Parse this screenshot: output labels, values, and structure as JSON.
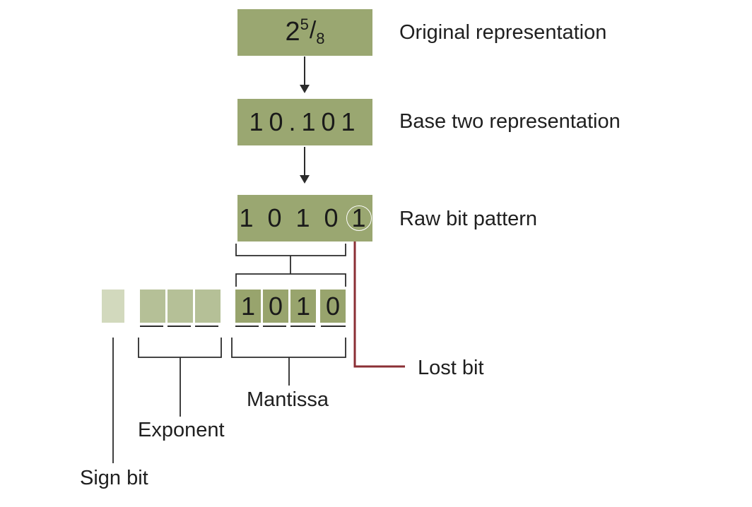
{
  "original": {
    "base": "2",
    "numerator": "5",
    "slash": "/",
    "denominator": "8",
    "label": "Original representation"
  },
  "base_two": {
    "value": "10.101",
    "label": "Base two representation"
  },
  "raw": {
    "bits": [
      "1",
      "0",
      "1",
      "0",
      "1"
    ],
    "label": "Raw bit pattern"
  },
  "stored": {
    "mantissa_bits": [
      "1",
      "0",
      "1",
      "0"
    ]
  },
  "labels": {
    "lost_bit": "Lost bit",
    "mantissa": "Mantissa",
    "exponent": "Exponent",
    "sign_bit": "Sign bit"
  },
  "colors": {
    "box": "#9aa771",
    "sign_cell": "#d2d9bd",
    "exponent_cell": "#b5c097",
    "mantissa_cell": "#98a46d",
    "lost_line": "#8b2f35",
    "line": "#2b2b2b"
  }
}
